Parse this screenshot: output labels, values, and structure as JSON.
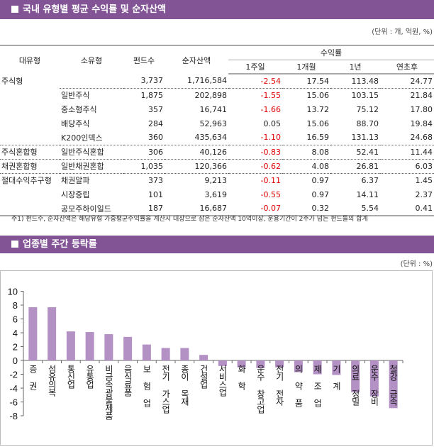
{
  "section1": {
    "title": "국내 유형별 평균 수익률 및 순자산액",
    "unit": "(단위 : 개, 억원, %)"
  },
  "table": {
    "headers": {
      "major": "대유형",
      "minor": "소유형",
      "funds": "펀드수",
      "assets": "순자산액",
      "returns": "수익률",
      "w1": "1주일",
      "m1": "1개월",
      "y1": "1년",
      "ytd": "연초후"
    },
    "rows": [
      {
        "major": "주식형",
        "minor": "",
        "funds": "3,737",
        "assets": "1,716,584",
        "w1": "-2.54",
        "m1": "17.54",
        "y1": "113.48",
        "ytd": "24.77",
        "grp": true
      },
      {
        "major": "",
        "minor": "일반주식",
        "funds": "1,875",
        "assets": "202,898",
        "w1": "-1.55",
        "m1": "15.06",
        "y1": "103.15",
        "ytd": "21.84",
        "grp": true
      },
      {
        "major": "",
        "minor": "중소형주식",
        "funds": "357",
        "assets": "16,741",
        "w1": "-1.66",
        "m1": "13.72",
        "y1": "75.12",
        "ytd": "17.80"
      },
      {
        "major": "",
        "minor": "배당주식",
        "funds": "284",
        "assets": "52,963",
        "w1": "0.05",
        "m1": "15.06",
        "y1": "88.70",
        "ytd": "19.84"
      },
      {
        "major": "",
        "minor": "K200인덱스",
        "funds": "360",
        "assets": "435,634",
        "w1": "-1.10",
        "m1": "16.59",
        "y1": "131.13",
        "ytd": "24.68"
      },
      {
        "major": "주식혼합형",
        "minor": "일반주식혼합",
        "funds": "306",
        "assets": "40,126",
        "w1": "-0.83",
        "m1": "8.08",
        "y1": "52.41",
        "ytd": "11.44",
        "grp": true
      },
      {
        "major": "채권혼합형",
        "minor": "일반채권혼합",
        "funds": "1,035",
        "assets": "120,366",
        "w1": "-0.62",
        "m1": "4.08",
        "y1": "26.81",
        "ytd": "6.03",
        "grp": true
      },
      {
        "major": "절대수익추구형",
        "minor": "채권알파",
        "funds": "373",
        "assets": "9,213",
        "w1": "-0.11",
        "m1": "0.97",
        "y1": "6.37",
        "ytd": "1.45",
        "grp": true
      },
      {
        "major": "",
        "minor": "시장중립",
        "funds": "101",
        "assets": "3,619",
        "w1": "-0.55",
        "m1": "0.97",
        "y1": "14.11",
        "ytd": "2.37"
      },
      {
        "major": "",
        "minor": "공모주하이일드",
        "funds": "187",
        "assets": "16,687",
        "w1": "-0.07",
        "m1": "0.32",
        "y1": "5.54",
        "ytd": "0.41"
      }
    ],
    "negative_color": "#e00000",
    "note": "주1) 펀드수, 순자산액은 해당유형 가중평균수익률을 계산시 대상으로 삼은 순자산액 10억이상, 운용기간이 2주가 넘는 펀드들의 합계"
  },
  "section2": {
    "title": "업종별 주간 등락률",
    "unit": "(단위 : %)"
  },
  "chart_data": {
    "type": "bar",
    "categories": [
      "증  권",
      "섬유의복",
      "통신업",
      "유통업",
      "비금속광물제품",
      "음식료품",
      "보 험 업",
      "전기 가스업",
      "종이 목재",
      "건설업",
      "서비스업",
      "화  학",
      "운수 창고업",
      "전기 전자",
      "의 약 품",
      "제 조 업",
      "기  계",
      "의료 정밀",
      "운수 장비",
      "철강 금속"
    ],
    "values": [
      7.7,
      7.7,
      4.2,
      4.1,
      3.8,
      3.4,
      2.3,
      1.8,
      1.8,
      0.8,
      -0.8,
      -1.0,
      -1.1,
      -1.0,
      -1.7,
      -2.0,
      -2.1,
      -4.6,
      -5.2,
      -6.9
    ],
    "ylim": [
      -8,
      10
    ],
    "yticks": [
      "10",
      "8",
      "6",
      "4",
      "2",
      "0",
      "-2",
      "-4",
      "-6",
      "-8"
    ],
    "bar_color": "#b491c4",
    "grid": false
  }
}
